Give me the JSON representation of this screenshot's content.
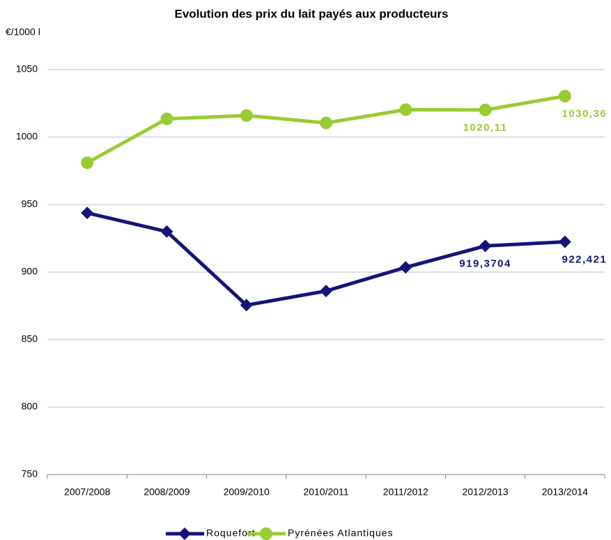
{
  "chart_data": {
    "type": "line",
    "title": "Evolution des prix du lait payés aux producteurs",
    "y_label": "€/1000 l",
    "categories": [
      "2007/2008",
      "2008/2009",
      "2009/2010",
      "2010/2011",
      "2011/2012",
      "2012/2013",
      "2013/2014"
    ],
    "series": [
      {
        "name": "Roquefort",
        "color": "#14147a",
        "marker": "diamond",
        "values": [
          943.8,
          930,
          875.5,
          886,
          903.5,
          919.3704,
          922.421
        ],
        "value_labels": [
          null,
          null,
          null,
          null,
          null,
          "919,3704",
          "922,421"
        ]
      },
      {
        "name": "Pyrénées Atlantiques",
        "color": "#99cc33",
        "marker": "circle",
        "values": [
          981,
          1013.5,
          1016,
          1010.5,
          1020.3,
          1020.11,
          1030.36
        ],
        "value_labels": [
          null,
          null,
          null,
          null,
          null,
          "1020,11",
          "1030,36"
        ]
      }
    ],
    "ylim": [
      750,
      1050
    ],
    "yticks": [
      750,
      800,
      850,
      900,
      950,
      1000,
      1050
    ],
    "grid": true,
    "legend": "bottom"
  }
}
